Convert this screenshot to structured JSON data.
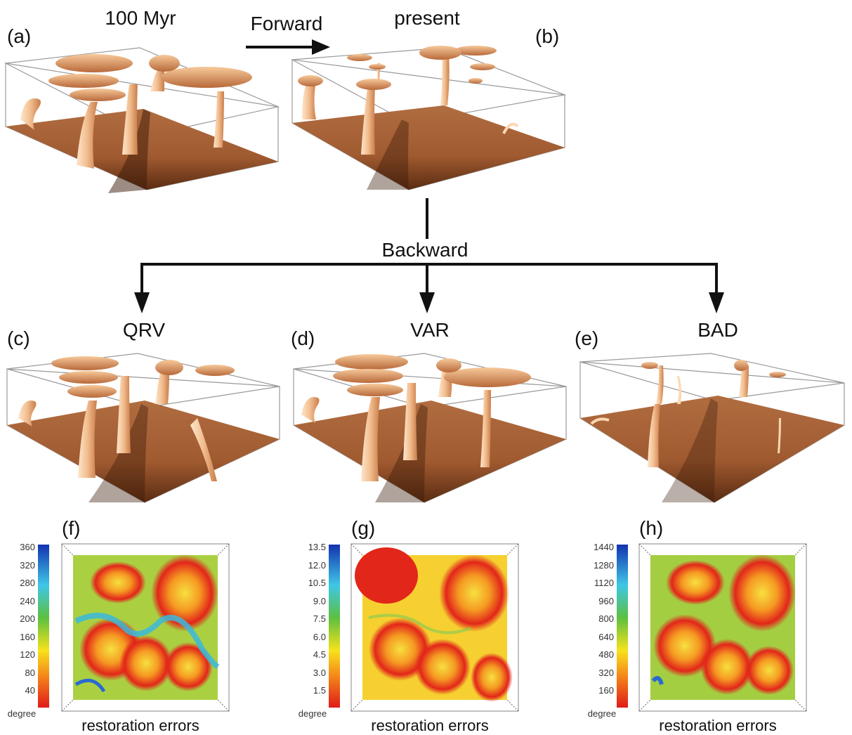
{
  "labels": {
    "a": "(a)",
    "b": "(b)",
    "c": "(c)",
    "d": "(d)",
    "e": "(e)",
    "f": "(f)",
    "g": "(g)",
    "h": "(h)"
  },
  "titles": {
    "a": "100 Myr",
    "b": "present",
    "c": "QRV",
    "d": "VAR",
    "e": "BAD"
  },
  "arrows": {
    "forward": "Forward",
    "backward": "Backward"
  },
  "colorbars": {
    "f": {
      "ticks": [
        "360",
        "320",
        "280",
        "240",
        "200",
        "160",
        "120",
        "80",
        "40"
      ],
      "unit": "degree"
    },
    "g": {
      "ticks": [
        "13.5",
        "12.0",
        "10.5",
        "9.0",
        "7.5",
        "6.0",
        "4.5",
        "3.0",
        "1.5"
      ],
      "unit": "degree"
    },
    "h": {
      "ticks": [
        "1440",
        "1280",
        "1120",
        "960",
        "800",
        "640",
        "480",
        "320",
        "160"
      ],
      "unit": "degree"
    }
  },
  "captions": {
    "f": "restoration errors",
    "g": "restoration errors",
    "h": "restoration errors"
  },
  "colors": {
    "plume_light": "#fbd8b4",
    "plume_mid": "#e9a878",
    "floor": "#a8643a",
    "arrow": "#111111"
  }
}
